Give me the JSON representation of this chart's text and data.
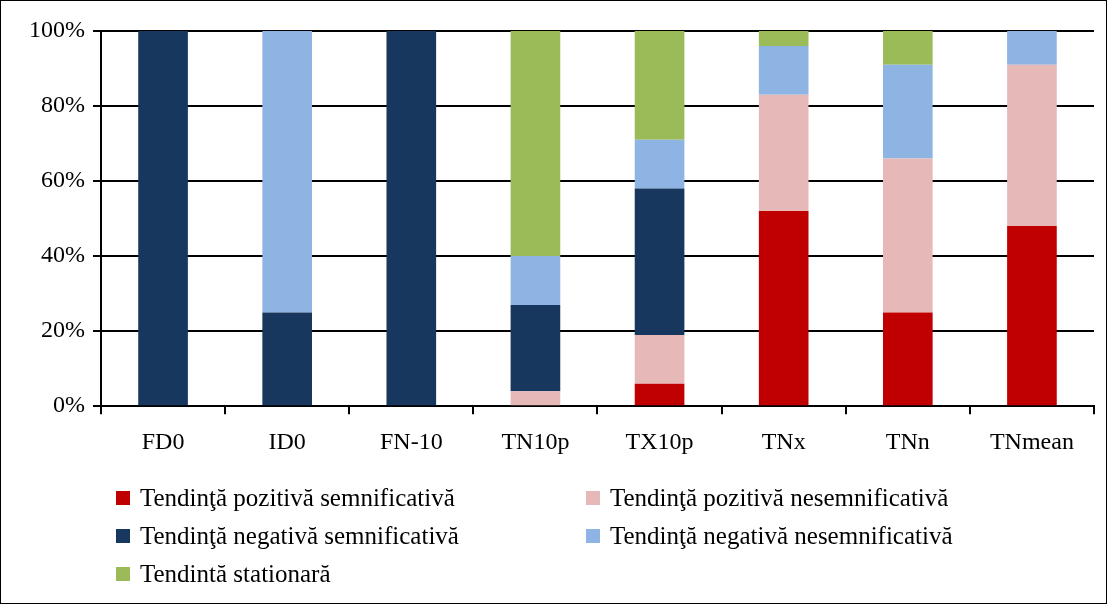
{
  "chart_data": {
    "type": "bar",
    "stacked": true,
    "categories": [
      "FD0",
      "ID0",
      "FN-10",
      "TN10p",
      "TX10p",
      "TNx",
      "TNn",
      "TNmean"
    ],
    "series": [
      {
        "name": "Tendinţă pozitivă semnificativă",
        "color": "#c00000",
        "values": [
          0,
          0,
          0,
          0,
          6,
          52,
          25,
          48
        ]
      },
      {
        "name": "Tendinţă pozitivă nesemnificativă",
        "color": "#e6b9b8",
        "values": [
          0,
          0,
          0,
          4,
          13,
          31,
          41,
          43
        ]
      },
      {
        "name": "Tendinţă negativă semnificativă",
        "color": "#17375e",
        "values": [
          100,
          25,
          100,
          23,
          39,
          0,
          0,
          0
        ]
      },
      {
        "name": "Tendinţă negativă nesemnificativă",
        "color": "#8eb4e3",
        "values": [
          0,
          75,
          0,
          13,
          13,
          13,
          25,
          9
        ]
      },
      {
        "name": "Tendintă stationară",
        "color": "#9bbb59",
        "values": [
          0,
          0,
          0,
          60,
          29,
          4,
          9,
          0
        ]
      }
    ],
    "ylim": [
      0,
      100
    ],
    "yticks": [
      {
        "value": 0,
        "label": "0%"
      },
      {
        "value": 20,
        "label": "20%"
      },
      {
        "value": 40,
        "label": "40%"
      },
      {
        "value": 60,
        "label": "60%"
      },
      {
        "value": 80,
        "label": "80%"
      },
      {
        "value": 100,
        "label": "100%"
      }
    ],
    "grid": "y",
    "legend": "bottom"
  }
}
